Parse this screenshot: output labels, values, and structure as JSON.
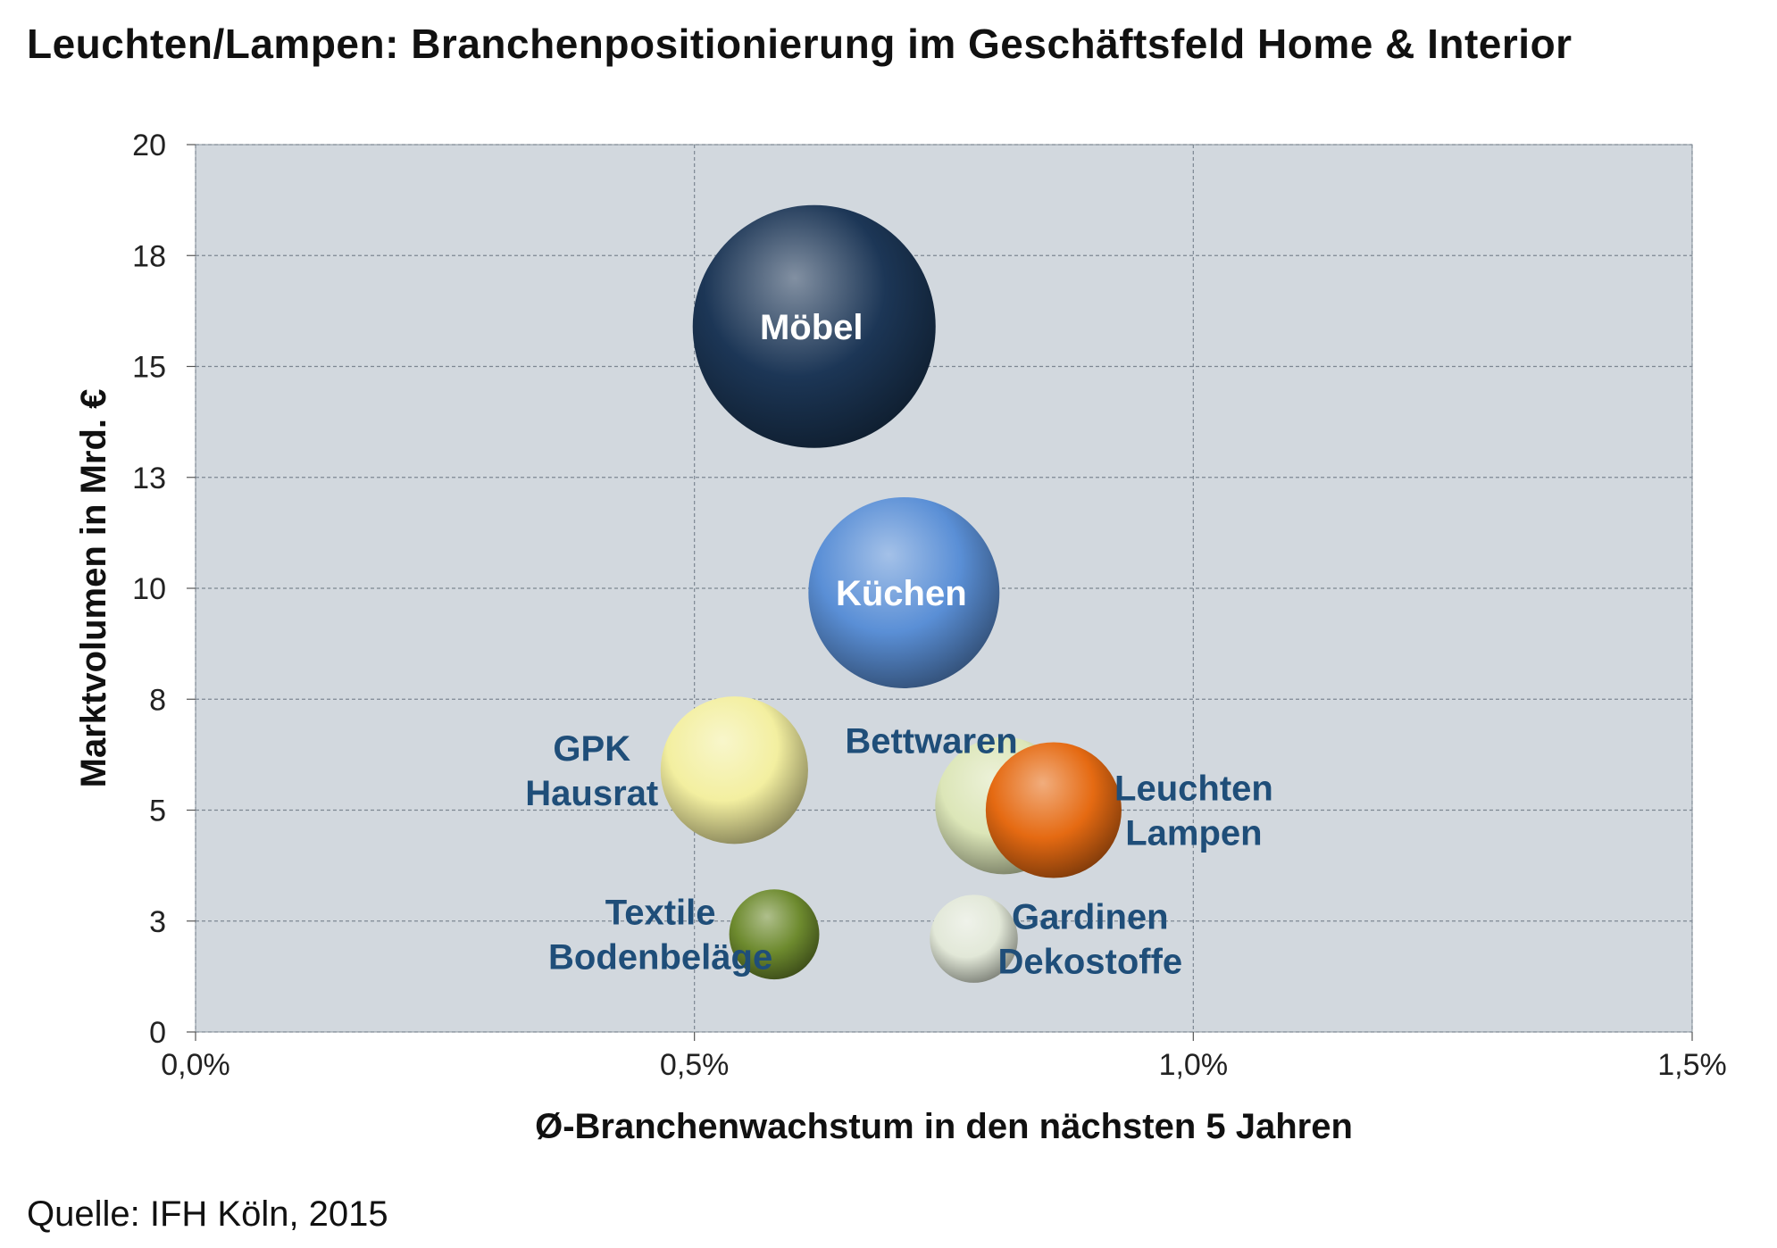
{
  "title": "Leuchten/Lampen: Branchenpositionierung im Geschäftsfeld Home & Interior",
  "source": "Quelle: IFH Köln, 2015",
  "chart_data": {
    "type": "bubble",
    "xlabel": "Ø-Branchenwachstum in den nächsten 5 Jahren",
    "ylabel": "Marktvolumen in Mrd. €",
    "xlim": [
      0,
      0.015
    ],
    "ylim": [
      0,
      20
    ],
    "x_ticks": [
      {
        "value": 0.0,
        "label": "0,0%"
      },
      {
        "value": 0.005,
        "label": "0,5%"
      },
      {
        "value": 0.01,
        "label": "1,0%"
      },
      {
        "value": 0.015,
        "label": "1,5%"
      }
    ],
    "y_ticks": [
      {
        "value": 0,
        "label": "0"
      },
      {
        "value": 2.5,
        "label": "3"
      },
      {
        "value": 5,
        "label": "5"
      },
      {
        "value": 7.5,
        "label": "8"
      },
      {
        "value": 10,
        "label": "10"
      },
      {
        "value": 12.5,
        "label": "13"
      },
      {
        "value": 15,
        "label": "15"
      },
      {
        "value": 17.5,
        "label": "18"
      },
      {
        "value": 20,
        "label": "20"
      }
    ],
    "grid": true,
    "background_color": "#d2d8de",
    "label_color": "#1f4e79",
    "points": [
      {
        "lines": [
          "Möbel"
        ],
        "x": 0.0062,
        "y": 15.9,
        "size": 16.0,
        "color": "#1c3656",
        "label_color": "#ffffff",
        "label_inside": true
      },
      {
        "lines": [
          "Küchen"
        ],
        "x": 0.0071,
        "y": 9.9,
        "size": 9.9,
        "color": "#5a8fd6",
        "label_color": "#ffffff",
        "label_inside": true
      },
      {
        "lines": [
          "GPK",
          "Hausrat"
        ],
        "x": 0.0054,
        "y": 5.9,
        "size": 5.9,
        "color": "#f3efa0",
        "label_position": "left"
      },
      {
        "lines": [
          "Bettwaren"
        ],
        "x": 0.0081,
        "y": 5.1,
        "size": 5.1,
        "color": "#dce6b8",
        "label_position": "top-left"
      },
      {
        "lines": [
          "Leuchten",
          "Lampen"
        ],
        "x": 0.0086,
        "y": 5.0,
        "size": 5.0,
        "color": "#e56a12",
        "label_position": "right"
      },
      {
        "lines": [
          "Textile",
          "Bodenbeläge"
        ],
        "x": 0.0058,
        "y": 2.2,
        "size": 2.2,
        "color": "#6d8a2e",
        "label_position": "left"
      },
      {
        "lines": [
          "Gardinen",
          "Dekostoffe"
        ],
        "x": 0.0078,
        "y": 2.1,
        "size": 2.1,
        "color": "#e2e8d8",
        "label_position": "right"
      }
    ]
  }
}
